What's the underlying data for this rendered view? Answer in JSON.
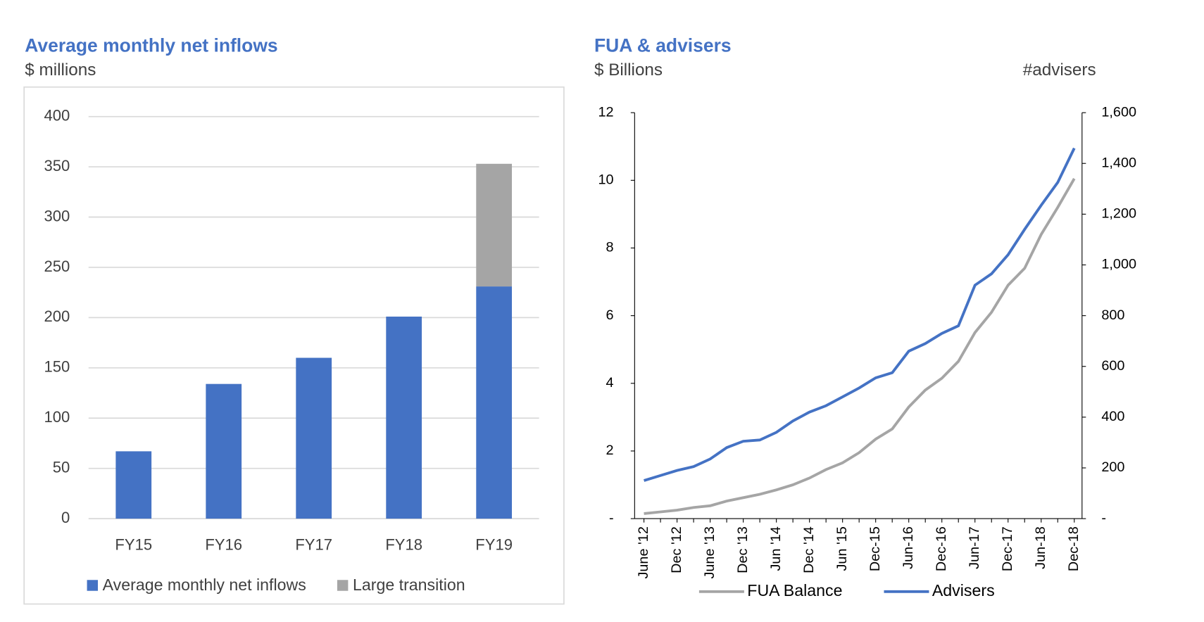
{
  "chart_data": [
    {
      "type": "bar",
      "stacked": true,
      "title": "Average monthly net inflows",
      "subtitle": "$ millions",
      "categories": [
        "FY15",
        "FY16",
        "FY17",
        "FY18",
        "FY19"
      ],
      "series": [
        {
          "name": "Average monthly net inflows",
          "color": "#4472c4",
          "values": [
            67,
            134,
            160,
            201,
            231
          ]
        },
        {
          "name": "Large transition",
          "color": "#a5a5a5",
          "values": [
            null,
            null,
            null,
            null,
            122
          ]
        }
      ],
      "ylim": [
        0,
        400
      ],
      "yticks": [
        0,
        50,
        100,
        150,
        200,
        250,
        300,
        350,
        400
      ],
      "grid": true,
      "legend": "bottom"
    },
    {
      "type": "line",
      "title": "FUA & advisers",
      "subtitle": "$ Billions",
      "y2label": "#advisers",
      "categories": [
        "June '12",
        null,
        "Dec '12",
        null,
        "June '13",
        null,
        "Dec '13",
        null,
        "Jun '14",
        null,
        "Dec '14",
        null,
        "Jun '15",
        null,
        "Dec-15",
        null,
        "Jun-16",
        null,
        "Dec-16",
        null,
        "Jun-17",
        null,
        "Dec-17",
        null,
        "Jun-18",
        null,
        "Dec-18"
      ],
      "series": [
        {
          "name": "FUA Balance",
          "color": "#a5a5a5",
          "values": [
            0.15,
            0.2,
            0.25,
            0.33,
            0.38,
            0.52,
            0.62,
            0.72,
            0.85,
            1.0,
            1.2,
            1.45,
            1.65,
            1.95,
            2.35,
            2.65,
            3.3,
            3.8,
            4.15,
            4.65,
            5.5,
            6.1,
            6.9,
            7.4,
            8.4,
            9.2,
            10.05
          ]
        },
        {
          "name": "Advisers",
          "color": "#4472c4",
          "axis": "y2",
          "values": [
            150,
            170,
            190,
            205,
            235,
            280,
            305,
            310,
            340,
            385,
            420,
            445,
            480,
            515,
            555,
            575,
            660,
            690,
            730,
            760,
            920,
            965,
            1040,
            1140,
            1235,
            1325,
            1460
          ]
        }
      ],
      "ylim": [
        0,
        12
      ],
      "yticks": [
        {
          "value": 0,
          "label": "-"
        },
        2,
        4,
        6,
        8,
        10,
        12
      ],
      "y2lim": [
        0,
        1600
      ],
      "y2ticks": [
        {
          "value": 0,
          "label": "-"
        },
        200,
        400,
        600,
        800,
        {
          "value": 1000,
          "label": "1,000"
        },
        {
          "value": 1200,
          "label": "1,200"
        },
        {
          "value": 1400,
          "label": "1,400"
        },
        {
          "value": 1600,
          "label": "1,600"
        }
      ],
      "grid": false,
      "legend": "bottom"
    }
  ]
}
